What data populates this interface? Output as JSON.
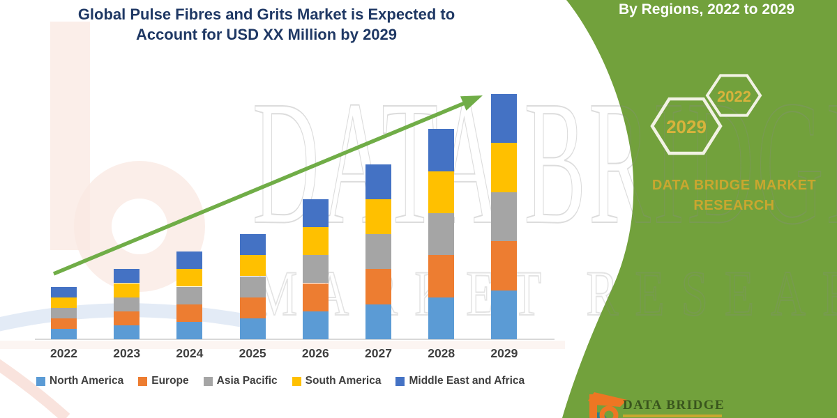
{
  "title": {
    "line1": "Global Pulse Fibres and Grits Market is Expected to",
    "line2": "Account for USD XX Million by 2029"
  },
  "side_panel": {
    "heading": "By Regions, 2022 to 2029",
    "hexagon_top": "2022",
    "hexagon_bottom": "2029",
    "brand": "DATA BRIDGE MARKET RESEARCH",
    "panel_color": "#72A13C",
    "hexagon_border_color": "#F2F2E4",
    "accent_text_color": "#D8B33C"
  },
  "watermark": {
    "line1": "DATA BRIDGE",
    "line2": "MARKET RESEARCH"
  },
  "footer_logo": {
    "brand": "DATA BRIDGE"
  },
  "chart_data": {
    "type": "bar",
    "stacked": true,
    "title": "Global Pulse Fibres and Grits Market is Expected to Account for USD XX Million by 2029",
    "xlabel": "",
    "ylabel": "",
    "categories": [
      "2022",
      "2023",
      "2024",
      "2025",
      "2026",
      "2027",
      "2028",
      "2029"
    ],
    "series": [
      {
        "name": "North America",
        "color": "#5B9BD5",
        "values": [
          15,
          20,
          25,
          30,
          40,
          50,
          60,
          70
        ]
      },
      {
        "name": "Europe",
        "color": "#ED7D31",
        "values": [
          15,
          20,
          25,
          30,
          40,
          50,
          60,
          70
        ]
      },
      {
        "name": "Asia Pacific",
        "color": "#A5A5A5",
        "values": [
          15,
          20,
          25,
          30,
          40,
          50,
          60,
          70
        ]
      },
      {
        "name": "South America",
        "color": "#FFC000",
        "values": [
          15,
          20,
          25,
          30,
          40,
          50,
          60,
          70
        ]
      },
      {
        "name": "Middle East and Africa",
        "color": "#4472C4",
        "values": [
          15,
          20,
          25,
          30,
          40,
          50,
          60,
          70
        ]
      }
    ],
    "totals": [
      75,
      100,
      125,
      150,
      200,
      250,
      300,
      350
    ],
    "values_note": "no numeric axis shown in figure; values are relative estimates from bar heights",
    "legend_position": "bottom",
    "gridlines": false,
    "trend_arrow": true,
    "trend_arrow_color": "#70AD47"
  }
}
